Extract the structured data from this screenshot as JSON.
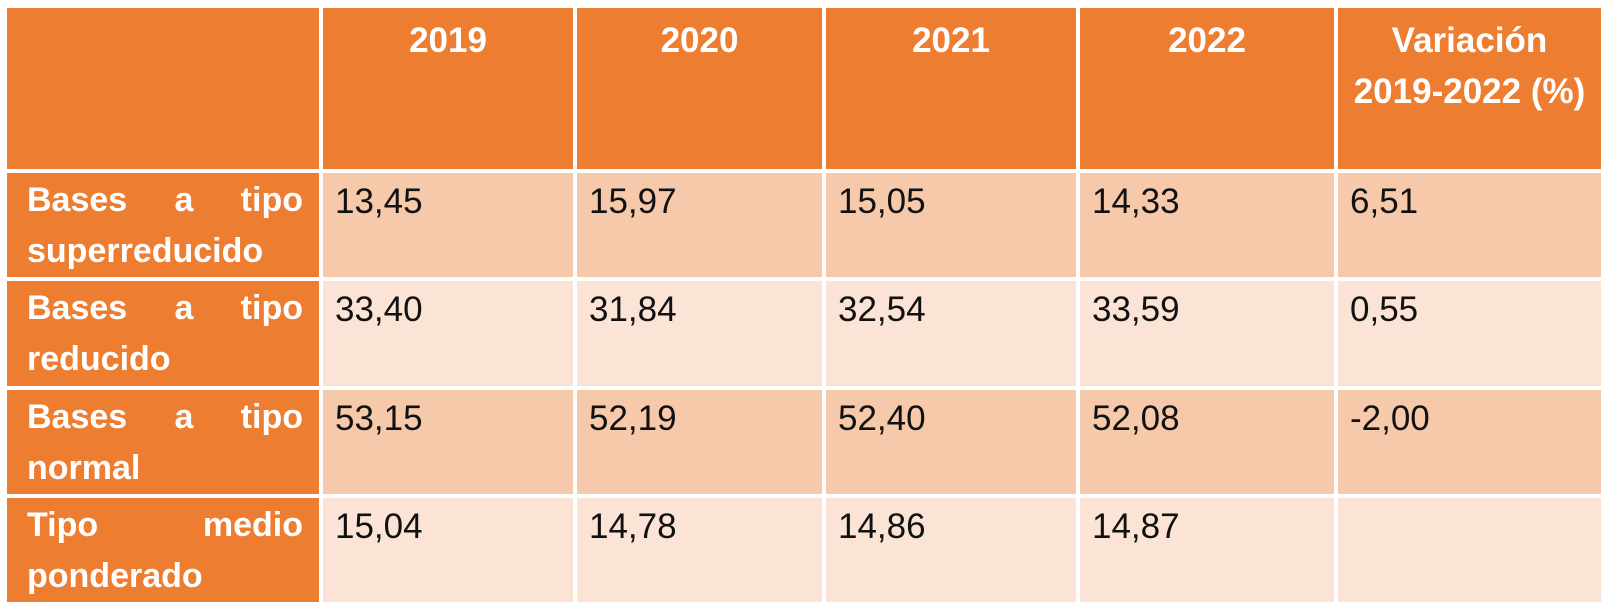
{
  "table": {
    "title_semantic": "Distribución de bases de IVA por tipo impositivo",
    "colors": {
      "accent_orange": "#ED7D31",
      "band_dark": "#F6C9AA",
      "band_light": "#FBE4D5",
      "grid_white": "#FFFFFF",
      "header_text": "#FFFFFF",
      "value_text": "#111111"
    },
    "columns": [
      "",
      "2019",
      "2020",
      "2021",
      "2022",
      "Variación 2019-2022 (%)"
    ],
    "rows": [
      {
        "label": "Bases a tipo superreducido",
        "values": [
          "13,45",
          "15,97",
          "15,05",
          "14,33",
          "6,51"
        ]
      },
      {
        "label": "Bases a tipo reducido",
        "values": [
          "33,40",
          "31,84",
          "32,54",
          "33,59",
          "0,55"
        ]
      },
      {
        "label": "Bases a tipo normal",
        "values": [
          "53,15",
          "52,19",
          "52,40",
          "52,08",
          "-2,00"
        ]
      },
      {
        "label": "Tipo medio ponderado",
        "values": [
          "15,04",
          "14,78",
          "14,86",
          "14,87",
          ""
        ]
      }
    ]
  }
}
